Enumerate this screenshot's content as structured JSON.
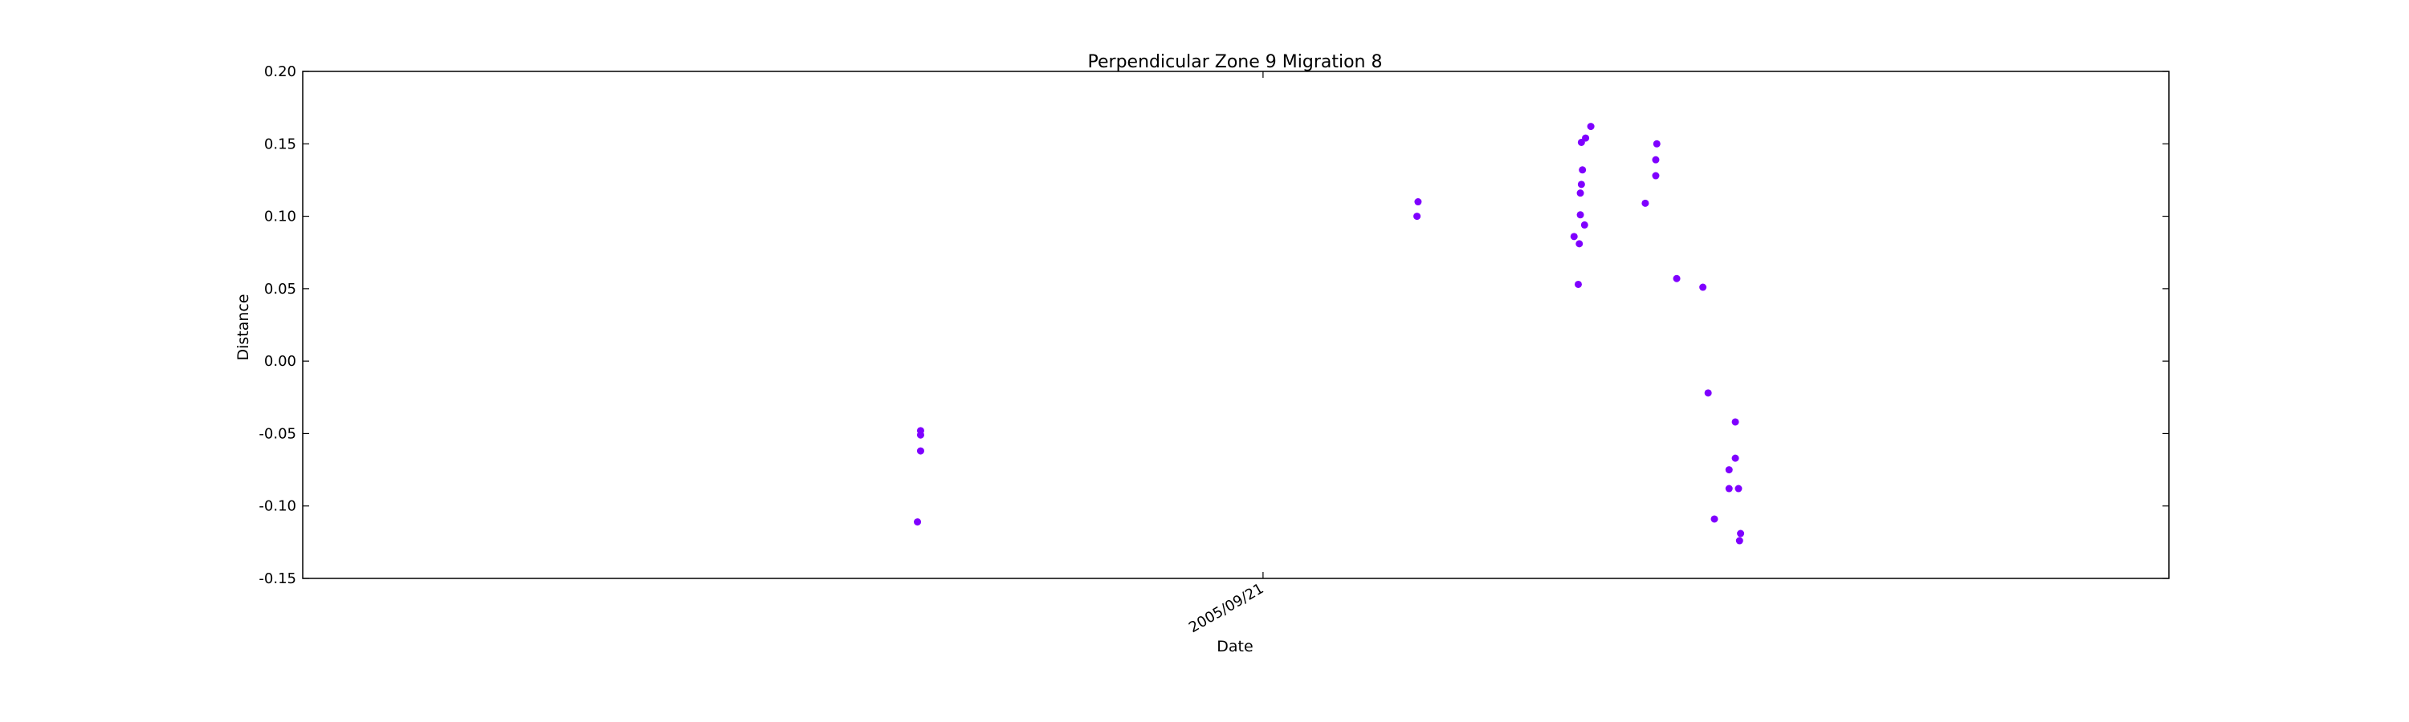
{
  "chart_data": {
    "type": "scatter",
    "title": "Perpendicular Zone 9 Migration 8",
    "xlabel": "Date",
    "ylabel": "Distance",
    "x_tick_labels": [
      "2005/09/21"
    ],
    "y_ticks": [
      -0.15,
      -0.1,
      -0.05,
      0.0,
      0.05,
      0.1,
      0.15,
      0.2
    ],
    "ylim": [
      -0.15,
      0.2
    ],
    "xlim": [
      "2003/03/19",
      "2008/02/03"
    ],
    "grid": false,
    "marker_color": "#7f00ff",
    "series": [
      {
        "points": [
          {
            "x": "2004/10/26",
            "y": -0.111
          },
          {
            "x": "2004/10/29",
            "y": -0.048
          },
          {
            "x": "2004/10/29",
            "y": -0.051
          },
          {
            "x": "2004/10/29",
            "y": -0.062
          },
          {
            "x": "2006/02/15",
            "y": 0.1
          },
          {
            "x": "2006/02/16",
            "y": 0.11
          },
          {
            "x": "2006/07/15",
            "y": 0.086
          },
          {
            "x": "2006/07/19",
            "y": 0.053
          },
          {
            "x": "2006/07/20",
            "y": 0.081
          },
          {
            "x": "2006/07/21",
            "y": 0.101
          },
          {
            "x": "2006/07/21",
            "y": 0.116
          },
          {
            "x": "2006/07/22",
            "y": 0.122
          },
          {
            "x": "2006/07/22",
            "y": 0.151
          },
          {
            "x": "2006/07/23",
            "y": 0.132
          },
          {
            "x": "2006/07/25",
            "y": 0.094
          },
          {
            "x": "2006/07/26",
            "y": 0.154
          },
          {
            "x": "2006/07/31",
            "y": 0.162
          },
          {
            "x": "2006/09/21",
            "y": 0.109
          },
          {
            "x": "2006/10/01",
            "y": 0.128
          },
          {
            "x": "2006/10/01",
            "y": 0.139
          },
          {
            "x": "2006/10/02",
            "y": 0.15
          },
          {
            "x": "2006/10/21",
            "y": 0.057
          },
          {
            "x": "2006/11/15",
            "y": 0.051
          },
          {
            "x": "2006/11/20",
            "y": -0.022
          },
          {
            "x": "2006/11/26",
            "y": -0.109
          },
          {
            "x": "2006/12/10",
            "y": -0.075
          },
          {
            "x": "2006/12/10",
            "y": -0.088
          },
          {
            "x": "2006/12/16",
            "y": -0.042
          },
          {
            "x": "2006/12/16",
            "y": -0.067
          },
          {
            "x": "2006/12/19",
            "y": -0.088
          },
          {
            "x": "2006/12/20",
            "y": -0.124
          },
          {
            "x": "2006/12/21",
            "y": -0.119
          }
        ]
      }
    ]
  }
}
